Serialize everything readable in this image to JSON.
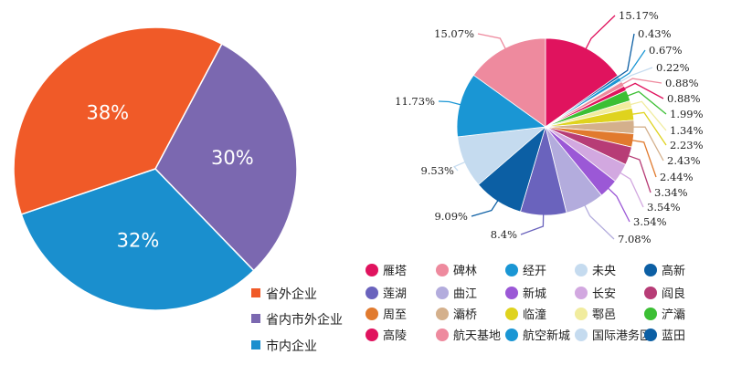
{
  "chart_data": [
    {
      "type": "pie",
      "title": "",
      "categories": [
        "省外企业",
        "省内市外企业",
        "市内企业"
      ],
      "values": [
        38,
        30,
        32
      ],
      "labels": [
        "38%",
        "30%",
        "32%"
      ],
      "colors": [
        "#f05a28",
        "#7b68b0",
        "#1a8fce"
      ],
      "legend_position": "bottom-right"
    },
    {
      "type": "pie",
      "title": "",
      "categories": [
        "雁塔",
        "碑林",
        "经开",
        "未央",
        "高新",
        "莲湖",
        "曲江",
        "新城",
        "长安",
        "阎良",
        "周至",
        "灞桥",
        "临潼",
        "鄠邑",
        "浐灞",
        "高陵",
        "航天基地",
        "航空新城",
        "国际港务区",
        "蓝田"
      ],
      "legend_colors": [
        "#e0135e",
        "#ee8a9e",
        "#1a96d4",
        "#c5dbef",
        "#0c5fa4",
        "#6a63bd",
        "#b3acdd",
        "#9b58d6",
        "#d2a8e0",
        "#b73c76",
        "#e17a2e",
        "#d4b08c",
        "#dfd31e",
        "#f1ec9e",
        "#3cbf34",
        "#e0135e",
        "#ee8a9e",
        "#1a96d4",
        "#c5dbef",
        "#0c5fa4"
      ],
      "slice_order_clockwise": [
        "雁塔",
        "s2",
        "s3",
        "s4",
        "s5",
        "s6",
        "s7",
        "s8",
        "s9",
        "s10",
        "s11",
        "s12",
        "s13",
        "s14",
        "s15",
        "s16",
        "s17",
        "s18",
        "s19",
        "s20"
      ],
      "values": [
        15.17,
        0.43,
        0.67,
        0.22,
        0.88,
        0.88,
        1.99,
        1.34,
        2.23,
        2.43,
        2.44,
        3.34,
        3.54,
        3.54,
        7.08,
        8.4,
        9.09,
        9.53,
        11.73,
        15.07
      ],
      "labels": [
        "15.17%",
        "0.43%",
        "0.67%",
        "0.22%",
        "0.88%",
        "0.88%",
        "1.99%",
        "1.34%",
        "2.23%",
        "2.43%",
        "2.44%",
        "3.34%",
        "3.54%",
        "3.54%",
        "7.08%",
        "8.4%",
        "9.09%",
        "9.53%",
        "11.73%",
        "15.07%"
      ],
      "slice_colors": [
        "#e0135e",
        "#0c5fa4",
        "#1a96d4",
        "#c5dbef",
        "#ee8a9e",
        "#e0135e",
        "#3cbf34",
        "#f1ec9e",
        "#dfd31e",
        "#d4b08c",
        "#e17a2e",
        "#b73c76",
        "#d2a8e0",
        "#9b58d6",
        "#b3acdd",
        "#6a63bd",
        "#0c5fa4",
        "#c5dbef",
        "#1a96d4",
        "#ee8a9e"
      ],
      "legend_position": "bottom"
    }
  ]
}
